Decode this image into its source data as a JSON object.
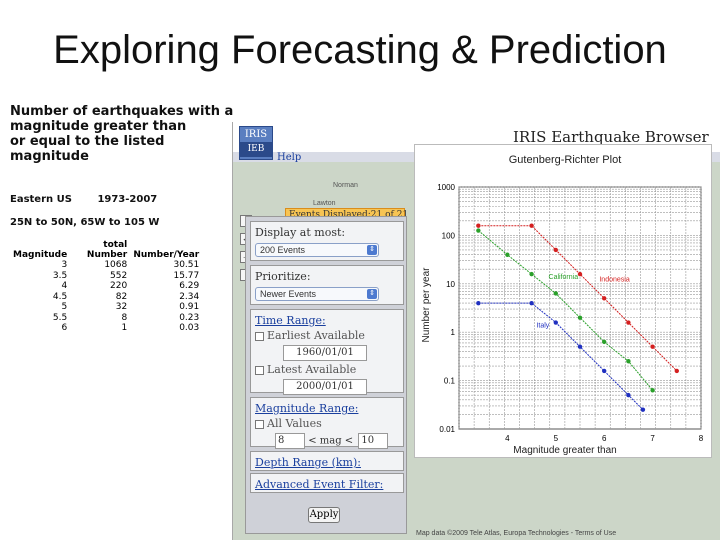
{
  "slide": {
    "title": "Exploring Forecasting & Prediction"
  },
  "table": {
    "heading_line1": "Number of earthquakes with a magnitude greater than",
    "heading_line2": "or equal to the listed magnitude",
    "region": "Eastern US",
    "years": "1973-2007",
    "bounds": "25N to 50N, 65W to 105 W",
    "col_header_top": "total",
    "columns": [
      "Magnitude",
      "Number",
      "Number/Year"
    ],
    "rows": [
      [
        "3",
        "1068",
        "30.51"
      ],
      [
        "3.5",
        "552",
        "15.77"
      ],
      [
        "4",
        "220",
        "6.29"
      ],
      [
        "4.5",
        "82",
        "2.34"
      ],
      [
        "5",
        "32",
        "0.91"
      ],
      [
        "5.5",
        "8",
        "0.23"
      ],
      [
        "6",
        "1",
        "0.03"
      ]
    ]
  },
  "browser": {
    "title": "IRIS Earthquake Browser",
    "logo_text": "IRIS",
    "logo_sub": "IEB",
    "help": "Help",
    "events_displayed": "Events Displayed:21 of 21",
    "map_labels": [
      "Norman",
      "Lawton"
    ],
    "map_footer": "Map data ©2009 Tele Atlas, Europa Technologies - Terms of Use"
  },
  "panel": {
    "display_label": "Display at most:",
    "display_value": "200 Events",
    "prioritize_label": "Prioritize:",
    "prioritize_value": "Newer Events",
    "time_range_link": "Time Range:",
    "earliest_label": "Earliest Available",
    "earliest_value": "1960/01/01",
    "latest_label": "Latest Available",
    "latest_value": "2000/01/01",
    "mag_range_link": "Magnitude Range:",
    "all_values_label": "All Values",
    "mag_min": "8",
    "mag_sep": "< mag <",
    "mag_max": "10",
    "depth_link": "Depth Range (km):",
    "advanced_link": "Advanced Event Filter:",
    "apply_label": "Apply"
  },
  "gr_plot": {
    "title": "Gutenberg-Richter Plot",
    "xlabel": "Magnitude greater than",
    "ylabel": "Number per year",
    "x_ticks": [
      "4",
      "5",
      "6",
      "7",
      "8"
    ],
    "y_ticks": [
      "1000",
      "100",
      "10",
      "1",
      "0.1",
      "0.01"
    ],
    "series": [
      {
        "name": "Indonesia",
        "color": "#d42020"
      },
      {
        "name": "California",
        "color": "#2aa02a"
      },
      {
        "name": "Italy",
        "color": "#2030c0"
      }
    ]
  }
}
